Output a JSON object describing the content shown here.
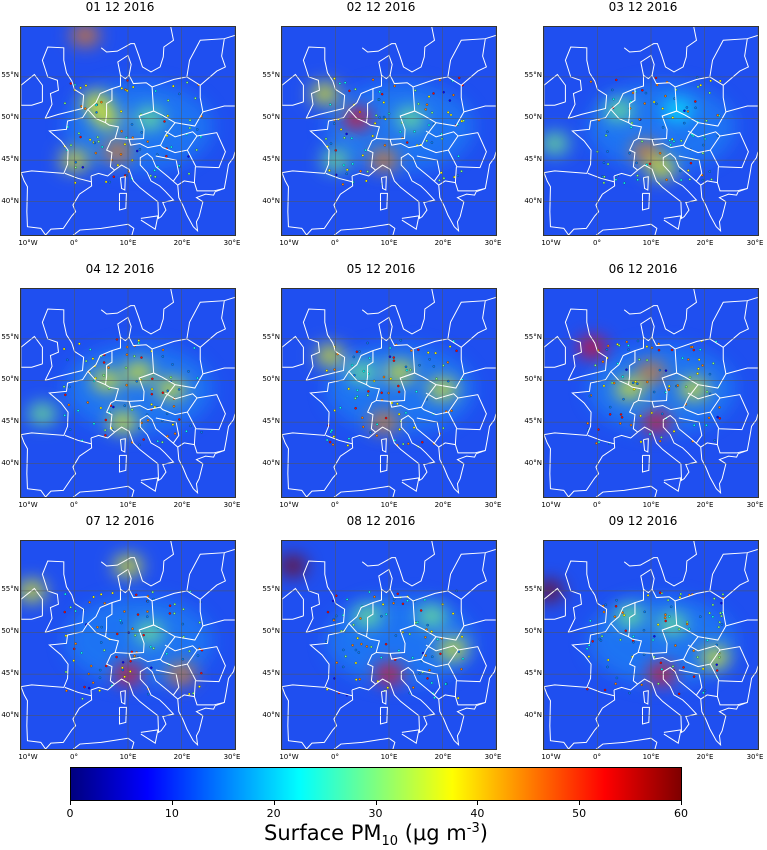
{
  "panels": [
    {
      "title": "01 12 2016",
      "hotspots": [
        {
          "lon": 4,
          "lat": 52,
          "v": 34
        },
        {
          "lon": 6,
          "lat": 50,
          "v": 40
        },
        {
          "lon": 8,
          "lat": 46,
          "v": 48
        },
        {
          "lon": 14,
          "lat": 50,
          "v": 30
        },
        {
          "lon": 2,
          "lat": 60,
          "v": 46
        },
        {
          "lon": 0,
          "lat": 45,
          "v": 38
        }
      ]
    },
    {
      "title": "02 12 2016",
      "hotspots": [
        {
          "lon": 4,
          "lat": 50,
          "v": 52
        },
        {
          "lon": 9,
          "lat": 45,
          "v": 44
        },
        {
          "lon": -2,
          "lat": 53,
          "v": 38
        },
        {
          "lon": 14,
          "lat": 50,
          "v": 28
        },
        {
          "lon": 0,
          "lat": 45,
          "v": 30
        }
      ]
    },
    {
      "title": "03 12 2016",
      "hotspots": [
        {
          "lon": 9,
          "lat": 46,
          "v": 42
        },
        {
          "lon": 12,
          "lat": 44,
          "v": 40
        },
        {
          "lon": 4,
          "lat": 51,
          "v": 30
        },
        {
          "lon": 15,
          "lat": 51,
          "v": 26
        },
        {
          "lon": -8,
          "lat": 47,
          "v": 30
        }
      ]
    },
    {
      "title": "04 12 2016",
      "hotspots": [
        {
          "lon": 6,
          "lat": 50,
          "v": 34
        },
        {
          "lon": 12,
          "lat": 51,
          "v": 38
        },
        {
          "lon": 18,
          "lat": 49,
          "v": 36
        },
        {
          "lon": 9,
          "lat": 45,
          "v": 36
        },
        {
          "lon": -6,
          "lat": 46,
          "v": 30
        }
      ]
    },
    {
      "title": "05 12 2016",
      "hotspots": [
        {
          "lon": -1,
          "lat": 53,
          "v": 38
        },
        {
          "lon": 12,
          "lat": 51,
          "v": 40
        },
        {
          "lon": 9,
          "lat": 45,
          "v": 42
        },
        {
          "lon": 20,
          "lat": 49,
          "v": 34
        },
        {
          "lon": 5,
          "lat": 51,
          "v": 32
        }
      ]
    },
    {
      "title": "06 12 2016",
      "hotspots": [
        {
          "lon": -1,
          "lat": 54,
          "v": 52
        },
        {
          "lon": 10,
          "lat": 51,
          "v": 44
        },
        {
          "lon": 11,
          "lat": 45,
          "v": 50
        },
        {
          "lon": 18,
          "lat": 49,
          "v": 40
        },
        {
          "lon": 6,
          "lat": 49,
          "v": 36
        }
      ]
    },
    {
      "title": "07 12 2016",
      "hotspots": [
        {
          "lon": 10,
          "lat": 45,
          "v": 54
        },
        {
          "lon": 20,
          "lat": 45,
          "v": 42
        },
        {
          "lon": -8,
          "lat": 55,
          "v": 40
        },
        {
          "lon": 10,
          "lat": 58,
          "v": 38
        },
        {
          "lon": 14,
          "lat": 50,
          "v": 32
        }
      ]
    },
    {
      "title": "08 12 2016",
      "hotspots": [
        {
          "lon": -8,
          "lat": 58,
          "v": 60
        },
        {
          "lon": 10,
          "lat": 45,
          "v": 54
        },
        {
          "lon": 22,
          "lat": 48,
          "v": 40
        },
        {
          "lon": 6,
          "lat": 52,
          "v": 30
        },
        {
          "lon": 18,
          "lat": 52,
          "v": 28
        }
      ]
    },
    {
      "title": "09 12 2016",
      "hotspots": [
        {
          "lon": -9,
          "lat": 55,
          "v": 58
        },
        {
          "lon": 12,
          "lat": 45,
          "v": 52
        },
        {
          "lon": 22,
          "lat": 47,
          "v": 40
        },
        {
          "lon": 6,
          "lat": 52,
          "v": 30
        },
        {
          "lon": 14,
          "lat": 51,
          "v": 28
        }
      ]
    }
  ],
  "lat_ticks": [
    {
      "value": 55,
      "label": "55°N"
    },
    {
      "value": 50,
      "label": "50°N"
    },
    {
      "value": 45,
      "label": "45°N"
    },
    {
      "value": 40,
      "label": "40°N"
    }
  ],
  "lon_ticks": [
    {
      "value": -10,
      "label": "10°W"
    },
    {
      "value": 0,
      "label": "0°"
    },
    {
      "value": 10,
      "label": "10°E"
    },
    {
      "value": 20,
      "label": "20°E"
    },
    {
      "value": 30,
      "label": "30°E"
    }
  ],
  "extent": {
    "lon_min": -10,
    "lon_max": 30,
    "lat_min": 36,
    "lat_max": 61
  },
  "colorbar": {
    "vmin": 0,
    "vmax": 60,
    "ticks": [
      "0",
      "10",
      "20",
      "30",
      "40",
      "50",
      "60"
    ],
    "title_main": "Surface PM",
    "title_sub": "10",
    "title_unit": " (μg m",
    "title_sup": "-3",
    "title_end": ")",
    "colormap": [
      "#00007f",
      "#0000ff",
      "#007fff",
      "#00ffff",
      "#7fff7f",
      "#ffff00",
      "#ff7f00",
      "#ff0000",
      "#7f0000"
    ]
  },
  "colors": {
    "land_bg": "#0a2fd8",
    "ocean_bg": "#1f4ff0",
    "coast": "#ffffff",
    "grid": "#555555"
  }
}
